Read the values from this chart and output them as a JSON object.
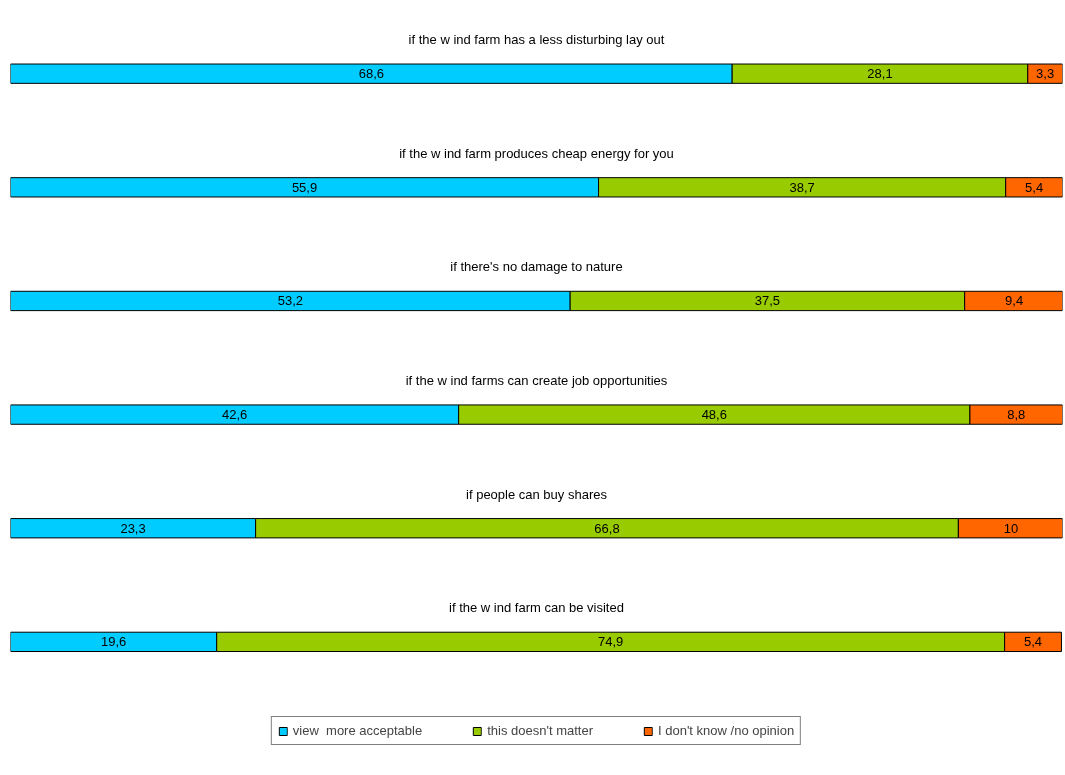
{
  "chart_data": {
    "type": "bar",
    "orientation": "horizontal",
    "stacked": true,
    "categories": [
      "if the w ind farm has a less disturbing lay out",
      "if the w ind farm produces cheap energy for you",
      "if there's no damage to nature",
      "if the w ind farms can create job opportunities",
      "if people can buy shares",
      "if the w ind farm can be visited"
    ],
    "series": [
      {
        "name": "view  more acceptable",
        "color": "#00ccff",
        "values": [
          68.6,
          55.9,
          53.2,
          42.6,
          23.3,
          19.6
        ],
        "value_labels": [
          "68,6",
          "55,9",
          "53,2",
          "42,6",
          "23,3",
          "19,6"
        ]
      },
      {
        "name": "this doesn't matter",
        "color": "#99cc00",
        "values": [
          28.1,
          38.7,
          37.5,
          48.6,
          66.8,
          74.9
        ],
        "value_labels": [
          "28,1",
          "38,7",
          "37,5",
          "48,6",
          "66,8",
          "74,9"
        ]
      },
      {
        "name": "I don't know /no opinion",
        "color": "#ff6600",
        "values": [
          3.3,
          5.4,
          9.4,
          8.8,
          10,
          5.4
        ],
        "value_labels": [
          "3,3",
          "5,4",
          "9,4",
          "8,8",
          "10",
          "5,4"
        ]
      }
    ],
    "xlim": [
      0,
      100
    ],
    "legend": "bottom"
  }
}
